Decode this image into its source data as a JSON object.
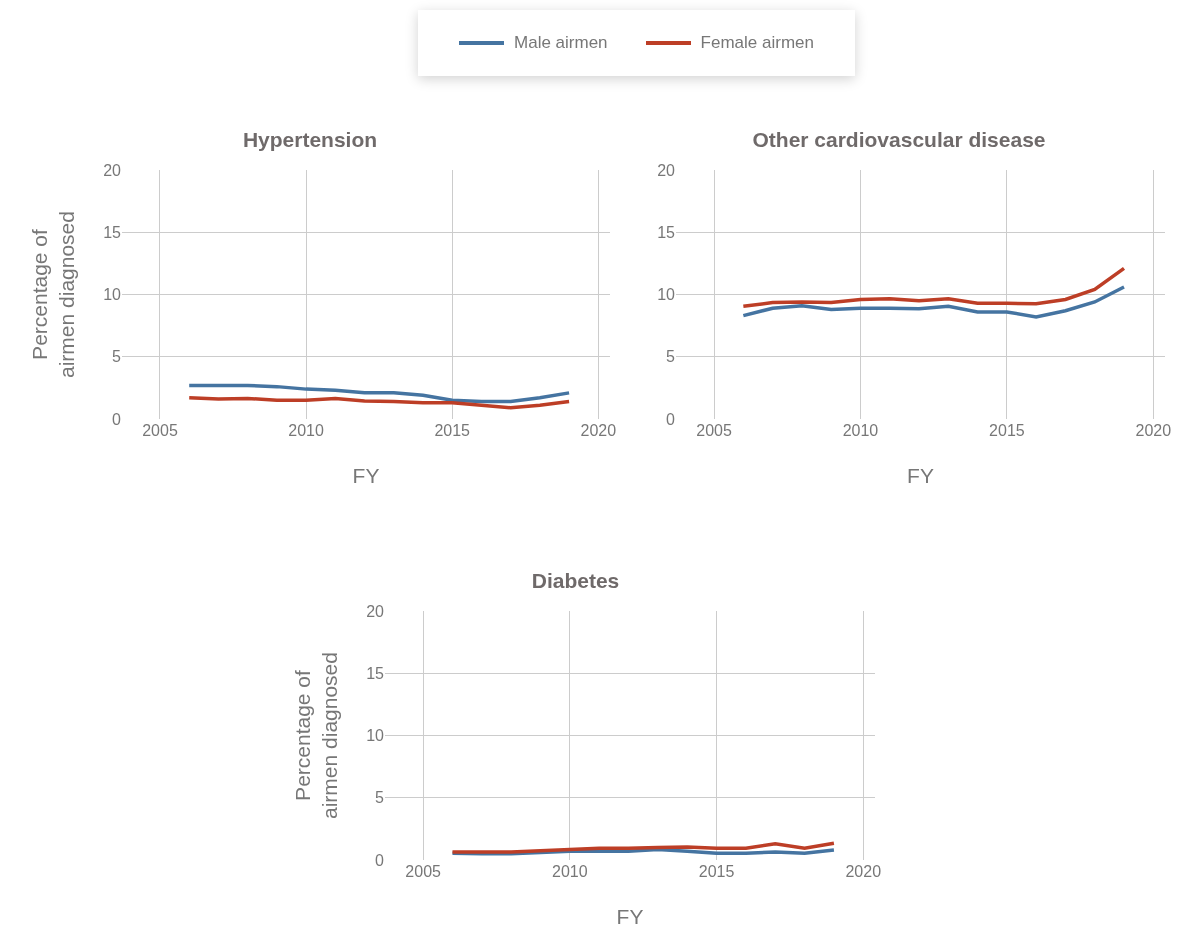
{
  "chart_data": [
    {
      "type": "line",
      "title": "Hypertension",
      "xlabel": "FY",
      "ylabel": "Percentage of airmen diagnosed",
      "x": [
        2006,
        2007,
        2008,
        2009,
        2010,
        2011,
        2012,
        2013,
        2014,
        2015,
        2016,
        2017,
        2018,
        2019
      ],
      "xlim": [
        2003.7,
        2020.4
      ],
      "xticks": [
        2005,
        2010,
        2015,
        2020
      ],
      "ylim": [
        0,
        20
      ],
      "yticks": [
        0,
        5,
        10,
        15,
        20
      ],
      "grid": true,
      "legend": "top",
      "series": [
        {
          "name": "Male airmen",
          "color": "#4574a1",
          "values": [
            2.7,
            2.7,
            2.7,
            2.6,
            2.4,
            2.3,
            2.1,
            2.1,
            1.9,
            1.5,
            1.4,
            1.4,
            1.7,
            2.1
          ]
        },
        {
          "name": "Female airmen",
          "color": "#bd3e26",
          "values": [
            1.7,
            1.6,
            1.65,
            1.5,
            1.5,
            1.65,
            1.45,
            1.4,
            1.3,
            1.3,
            1.1,
            0.9,
            1.1,
            1.4
          ]
        }
      ]
    },
    {
      "type": "line",
      "title": "Other cardiovascular disease",
      "xlabel": "FY",
      "x": [
        2006,
        2007,
        2008,
        2009,
        2010,
        2011,
        2012,
        2013,
        2014,
        2015,
        2016,
        2017,
        2018,
        2019
      ],
      "xlim": [
        2003.7,
        2020.4
      ],
      "xticks": [
        2005,
        2010,
        2015,
        2020
      ],
      "ylim": [
        0,
        20
      ],
      "yticks": [
        0,
        5,
        10,
        15,
        20
      ],
      "grid": true,
      "series": [
        {
          "color": "#4574a1",
          "values": [
            8.3,
            8.9,
            9.1,
            8.8,
            8.9,
            8.9,
            8.85,
            9.05,
            8.6,
            8.6,
            8.2,
            8.7,
            9.4,
            10.6
          ]
        },
        {
          "color": "#bd3e26",
          "values": [
            9.05,
            9.35,
            9.4,
            9.35,
            9.6,
            9.65,
            9.5,
            9.65,
            9.3,
            9.3,
            9.25,
            9.6,
            10.4,
            12.1
          ]
        }
      ]
    },
    {
      "type": "line",
      "title": "Diabetes",
      "xlabel": "FY",
      "ylabel": "Percentage of airmen diagnosed",
      "x": [
        2006,
        2007,
        2008,
        2009,
        2010,
        2011,
        2012,
        2013,
        2014,
        2015,
        2016,
        2017,
        2018,
        2019
      ],
      "xlim": [
        2003.7,
        2020.4
      ],
      "xticks": [
        2005,
        2010,
        2015,
        2020
      ],
      "ylim": [
        0,
        20
      ],
      "yticks": [
        0,
        5,
        10,
        15,
        20
      ],
      "grid": true,
      "series": [
        {
          "color": "#4574a1",
          "values": [
            0.55,
            0.5,
            0.5,
            0.6,
            0.7,
            0.7,
            0.7,
            0.85,
            0.7,
            0.55,
            0.55,
            0.65,
            0.55,
            0.8
          ]
        },
        {
          "color": "#bd3e26",
          "values": [
            0.65,
            0.65,
            0.65,
            0.75,
            0.85,
            0.95,
            0.95,
            1.0,
            1.05,
            0.95,
            0.95,
            1.3,
            0.95,
            1.35
          ]
        }
      ]
    }
  ]
}
